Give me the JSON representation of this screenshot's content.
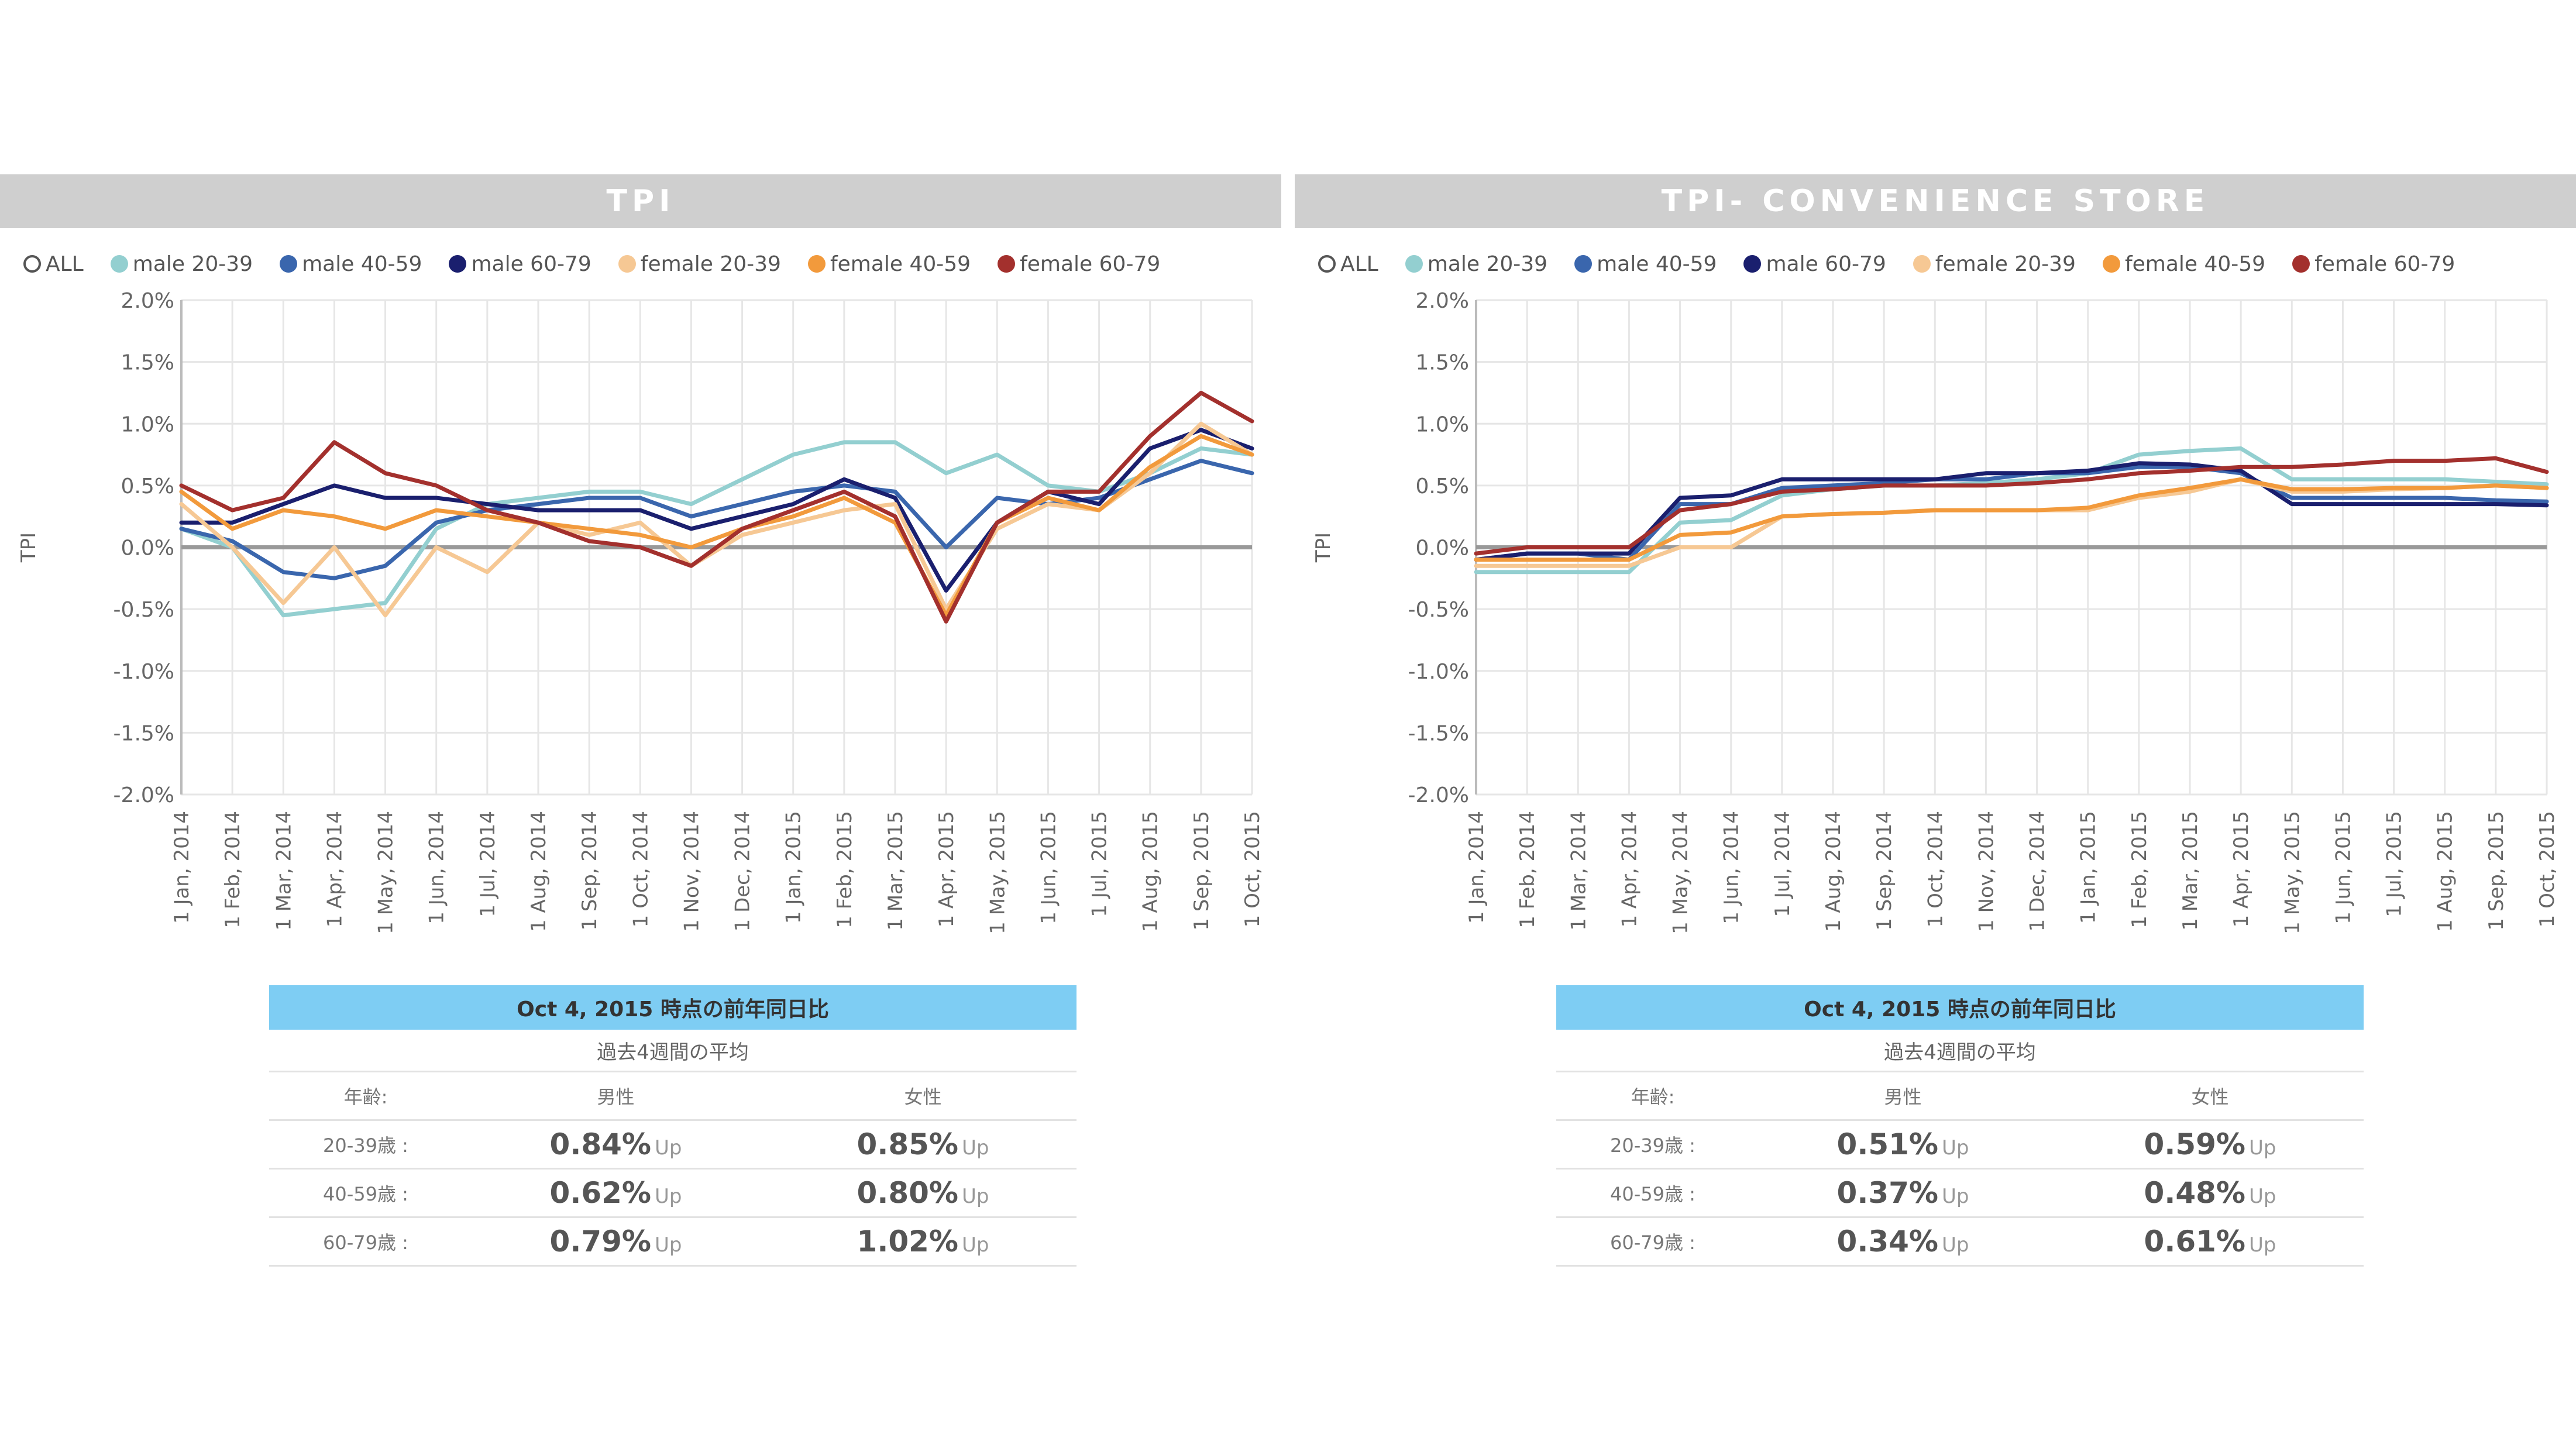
{
  "colors": {
    "male_20_39": "#93cfd0",
    "male_40_59": "#3a66ad",
    "male_60_79": "#1a1f6e",
    "female_20_39": "#f6c894",
    "female_40_59": "#f29a3c",
    "female_60_79": "#a3302d",
    "title_bar": "#cfcfcf",
    "summary_header": "#7ecdf3"
  },
  "legend": [
    {
      "key": "all",
      "label": "ALL",
      "icon": "hollow-circle-icon"
    },
    {
      "key": "male_20_39",
      "label": "male 20-39"
    },
    {
      "key": "male_40_59",
      "label": "male 40-59"
    },
    {
      "key": "male_60_79",
      "label": "male 60-79"
    },
    {
      "key": "female_20_39",
      "label": "female 20-39"
    },
    {
      "key": "female_40_59",
      "label": "female 40-59"
    },
    {
      "key": "female_60_79",
      "label": "female 60-79"
    }
  ],
  "chart_data": [
    {
      "type": "line",
      "title": "TPI",
      "ylabel": "TPI",
      "ylim": [
        -2.0,
        2.0
      ],
      "yticks": [
        "2.0%",
        "1.5%",
        "1.0%",
        "0.5%",
        "0.0%",
        "-0.5%",
        "-1.0%",
        "-1.5%",
        "-2.0%"
      ],
      "categories": [
        "1 Jan, 2014",
        "1 Feb, 2014",
        "1 Mar, 2014",
        "1 Apr, 2014",
        "1 May, 2014",
        "1 Jun, 2014",
        "1 Jul, 2014",
        "1 Aug, 2014",
        "1 Sep, 2014",
        "1 Oct, 2014",
        "1 Nov, 2014",
        "1 Dec, 2014",
        "1 Jan, 2015",
        "1 Feb, 2015",
        "1 Mar, 2015",
        "1 Apr, 2015",
        "1 May, 2015",
        "1 Jun, 2015",
        "1 Jul, 2015",
        "1 Aug, 2015",
        "1 Sep, 2015",
        "1 Oct, 2015"
      ],
      "grid": true,
      "legend_position": "top",
      "series": [
        {
          "name": "male 20-39",
          "key": "male_20_39",
          "values": [
            0.15,
            0.0,
            -0.55,
            -0.5,
            -0.45,
            0.15,
            0.35,
            0.4,
            0.45,
            0.45,
            0.35,
            0.55,
            0.75,
            0.85,
            0.85,
            0.6,
            0.75,
            0.5,
            0.45,
            0.6,
            0.8,
            0.75
          ]
        },
        {
          "name": "male 40-59",
          "key": "male_40_59",
          "values": [
            0.15,
            0.05,
            -0.2,
            -0.25,
            -0.15,
            0.2,
            0.3,
            0.35,
            0.4,
            0.4,
            0.25,
            0.35,
            0.45,
            0.5,
            0.45,
            0.0,
            0.4,
            0.35,
            0.4,
            0.55,
            0.7,
            0.6
          ]
        },
        {
          "name": "male 60-79",
          "key": "male_60_79",
          "values": [
            0.2,
            0.2,
            0.35,
            0.5,
            0.4,
            0.4,
            0.35,
            0.3,
            0.3,
            0.3,
            0.15,
            0.25,
            0.35,
            0.55,
            0.4,
            -0.35,
            0.2,
            0.45,
            0.35,
            0.8,
            0.95,
            0.8
          ]
        },
        {
          "name": "female 20-39",
          "key": "female_20_39",
          "values": [
            0.35,
            0.0,
            -0.45,
            0.0,
            -0.55,
            0.0,
            -0.2,
            0.2,
            0.1,
            0.2,
            -0.15,
            0.1,
            0.2,
            0.3,
            0.35,
            -0.5,
            0.15,
            0.35,
            0.3,
            0.6,
            1.0,
            0.75
          ]
        },
        {
          "name": "female 40-59",
          "key": "female_40_59",
          "values": [
            0.45,
            0.15,
            0.3,
            0.25,
            0.15,
            0.3,
            0.25,
            0.2,
            0.15,
            0.1,
            0.0,
            0.15,
            0.25,
            0.4,
            0.2,
            -0.55,
            0.2,
            0.4,
            0.3,
            0.65,
            0.9,
            0.75
          ]
        },
        {
          "name": "female 60-79",
          "key": "female_60_79",
          "values": [
            0.5,
            0.3,
            0.4,
            0.85,
            0.6,
            0.5,
            0.3,
            0.2,
            0.05,
            0.0,
            -0.15,
            0.15,
            0.3,
            0.45,
            0.25,
            -0.6,
            0.2,
            0.45,
            0.45,
            0.9,
            1.25,
            1.02
          ]
        }
      ]
    },
    {
      "type": "line",
      "title": "TPI- CONVENIENCE STORE",
      "ylabel": "TPI",
      "ylim": [
        -2.0,
        2.0
      ],
      "yticks": [
        "2.0%",
        "1.5%",
        "1.0%",
        "0.5%",
        "0.0%",
        "-0.5%",
        "-1.0%",
        "-1.5%",
        "-2.0%"
      ],
      "categories": [
        "1 Jan, 2014",
        "1 Feb, 2014",
        "1 Mar, 2014",
        "1 Apr, 2014",
        "1 May, 2014",
        "1 Jun, 2014",
        "1 Jul, 2014",
        "1 Aug, 2014",
        "1 Sep, 2014",
        "1 Oct, 2014",
        "1 Nov, 2014",
        "1 Dec, 2014",
        "1 Jan, 2015",
        "1 Feb, 2015",
        "1 Mar, 2015",
        "1 Apr, 2015",
        "1 May, 2015",
        "1 Jun, 2015",
        "1 Jul, 2015",
        "1 Aug, 2015",
        "1 Sep, 2015",
        "1 Oct, 2015"
      ],
      "grid": true,
      "legend_position": "top",
      "series": [
        {
          "name": "male 20-39",
          "key": "male_20_39",
          "values": [
            -0.2,
            -0.2,
            -0.2,
            -0.2,
            0.2,
            0.22,
            0.42,
            0.47,
            0.5,
            0.5,
            0.52,
            0.55,
            0.6,
            0.75,
            0.78,
            0.8,
            0.55,
            0.55,
            0.55,
            0.55,
            0.53,
            0.51
          ]
        },
        {
          "name": "male 40-59",
          "key": "male_40_59",
          "values": [
            -0.1,
            -0.05,
            -0.05,
            -0.1,
            0.35,
            0.35,
            0.48,
            0.5,
            0.52,
            0.55,
            0.55,
            0.6,
            0.6,
            0.65,
            0.65,
            0.6,
            0.4,
            0.4,
            0.4,
            0.4,
            0.38,
            0.37
          ]
        },
        {
          "name": "male 60-79",
          "key": "male_60_79",
          "values": [
            -0.1,
            -0.05,
            -0.05,
            -0.05,
            0.4,
            0.42,
            0.55,
            0.55,
            0.55,
            0.55,
            0.6,
            0.6,
            0.62,
            0.68,
            0.67,
            0.62,
            0.35,
            0.35,
            0.35,
            0.35,
            0.35,
            0.34
          ]
        },
        {
          "name": "female 20-39",
          "key": "female_20_39",
          "values": [
            -0.15,
            -0.15,
            -0.15,
            -0.15,
            0.0,
            0.0,
            0.25,
            0.27,
            0.28,
            0.3,
            0.3,
            0.3,
            0.3,
            0.4,
            0.45,
            0.55,
            0.45,
            0.45,
            0.47,
            0.48,
            0.5,
            0.48
          ]
        },
        {
          "name": "female 40-59",
          "key": "female_40_59",
          "values": [
            -0.1,
            -0.1,
            -0.1,
            -0.1,
            0.1,
            0.12,
            0.25,
            0.27,
            0.28,
            0.3,
            0.3,
            0.3,
            0.32,
            0.42,
            0.48,
            0.55,
            0.47,
            0.47,
            0.48,
            0.48,
            0.5,
            0.48
          ]
        },
        {
          "name": "female 60-79",
          "key": "female_60_79",
          "values": [
            -0.05,
            0.0,
            0.0,
            0.0,
            0.3,
            0.35,
            0.45,
            0.47,
            0.5,
            0.5,
            0.5,
            0.52,
            0.55,
            0.6,
            0.62,
            0.65,
            0.65,
            0.67,
            0.7,
            0.7,
            0.72,
            0.61
          ]
        }
      ]
    }
  ],
  "summaries": [
    {
      "header": "Oct 4, 2015 時点の前年同日比",
      "subheader": "過去4週間の平均",
      "col_labels": [
        "年齢:",
        "男性",
        "女性"
      ],
      "up_label": "Up",
      "rows": [
        {
          "age": "20-39歳 :",
          "male": "0.84%",
          "female": "0.85%"
        },
        {
          "age": "40-59歳 :",
          "male": "0.62%",
          "female": "0.80%"
        },
        {
          "age": "60-79歳 :",
          "male": "0.79%",
          "female": "1.02%"
        }
      ]
    },
    {
      "header": "Oct 4, 2015 時点の前年同日比",
      "subheader": "過去4週間の平均",
      "col_labels": [
        "年齢:",
        "男性",
        "女性"
      ],
      "up_label": "Up",
      "rows": [
        {
          "age": "20-39歳 :",
          "male": "0.51%",
          "female": "0.59%"
        },
        {
          "age": "40-59歳 :",
          "male": "0.37%",
          "female": "0.48%"
        },
        {
          "age": "60-79歳 :",
          "male": "0.34%",
          "female": "0.61%"
        }
      ]
    }
  ]
}
